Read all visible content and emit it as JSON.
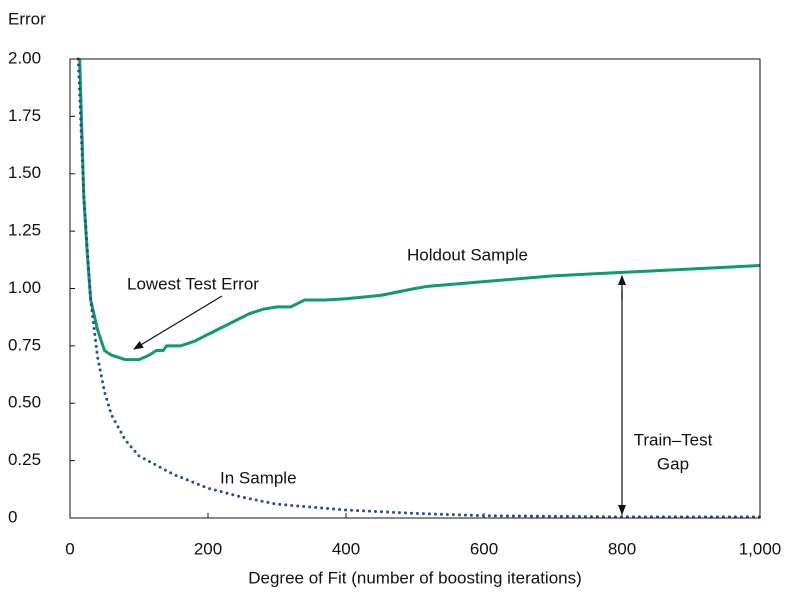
{
  "chart_data": {
    "type": "line",
    "y_label": "Error",
    "x_label": "Degree of Fit (number of boosting iterations)",
    "annotations": [
      "Lowest Test Error",
      "Train–Test",
      "Gap"
    ],
    "xlim": [
      0,
      1000
    ],
    "xticks": [
      0,
      200,
      400,
      600,
      800,
      {
        "value": 1000,
        "label": "1,000"
      }
    ],
    "ylim": [
      0,
      2
    ],
    "yticks": [
      0,
      0.25,
      {
        "value": 0.5,
        "label": "0.50"
      },
      0.75,
      {
        "value": 1,
        "label": "1.00"
      },
      1.25,
      {
        "value": 1.5,
        "label": "1.50"
      },
      1.75,
      {
        "value": 2,
        "label": "2.00"
      }
    ],
    "series": [
      {
        "name": "Holdout Sample",
        "color": "#119a6a",
        "style": "solid",
        "x": [
          14,
          20,
          25,
          30,
          40,
          50,
          60,
          80,
          100,
          115,
          125,
          135,
          140,
          160,
          180,
          200,
          220,
          240,
          260,
          280,
          300,
          320,
          340,
          370,
          400,
          450,
          500,
          520,
          600,
          700,
          800,
          900,
          1000
        ],
        "values": [
          2.0,
          1.4,
          1.15,
          0.95,
          0.82,
          0.73,
          0.71,
          0.69,
          0.69,
          0.71,
          0.73,
          0.73,
          0.75,
          0.75,
          0.77,
          0.8,
          0.83,
          0.86,
          0.89,
          0.91,
          0.92,
          0.92,
          0.95,
          0.95,
          0.955,
          0.97,
          1.0,
          1.01,
          1.03,
          1.055,
          1.07,
          1.085,
          1.1
        ]
      },
      {
        "name": "In Sample",
        "color": "#1f4e9c",
        "style": "dotted",
        "x": [
          12,
          20,
          30,
          40,
          50,
          60,
          80,
          100,
          150,
          200,
          250,
          300,
          400,
          500,
          600,
          800,
          1000
        ],
        "values": [
          2.0,
          1.4,
          0.95,
          0.7,
          0.55,
          0.45,
          0.34,
          0.27,
          0.19,
          0.13,
          0.09,
          0.06,
          0.035,
          0.02,
          0.01,
          0.005,
          0.005
        ]
      }
    ]
  }
}
